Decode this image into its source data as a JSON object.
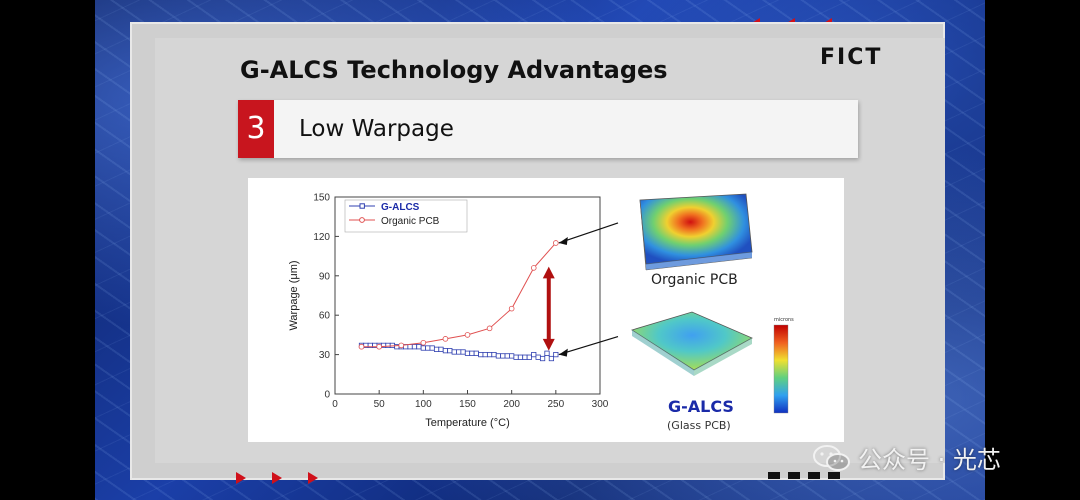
{
  "brand": {
    "logo_text": "FICT",
    "accent": "#d0101a"
  },
  "slide": {
    "title": "G-ALCS Technology Advantages",
    "section_number": "3",
    "section_title": "Low Warpage"
  },
  "figure": {
    "organic_caption": "Organic PCB",
    "galcs_caption": "G-ALCS",
    "glass_caption": "(Glass PCB)",
    "colorbar_label": "microns"
  },
  "watermark": {
    "text": "公众号 · 光芯",
    "icon": "wechat-icon"
  },
  "chart_data": {
    "type": "line",
    "title": "",
    "xlabel": "Temperature (°C)",
    "ylabel": "Warpage (μm)",
    "xlim": [
      0,
      300
    ],
    "ylim": [
      0,
      150
    ],
    "xticks": [
      0,
      50,
      100,
      150,
      200,
      250,
      300
    ],
    "yticks": [
      0,
      30,
      60,
      90,
      120,
      150
    ],
    "legend_position": "top-left",
    "series": [
      {
        "name": "G-ALCS",
        "color": "#3040b0",
        "marker": "square",
        "x": [
          30,
          35,
          40,
          45,
          50,
          55,
          60,
          65,
          70,
          75,
          80,
          85,
          90,
          95,
          100,
          105,
          110,
          115,
          120,
          125,
          130,
          135,
          140,
          145,
          150,
          155,
          160,
          165,
          170,
          175,
          180,
          185,
          190,
          195,
          200,
          205,
          210,
          215,
          220,
          225,
          230,
          235,
          240,
          245,
          250
        ],
        "y": [
          37,
          37,
          37,
          37,
          37,
          37,
          37,
          37,
          36,
          36,
          36,
          36,
          36,
          36,
          35,
          35,
          35,
          34,
          34,
          33,
          33,
          32,
          32,
          32,
          31,
          31,
          31,
          30,
          30,
          30,
          30,
          29,
          29,
          29,
          29,
          28,
          28,
          28,
          28,
          30,
          28,
          27,
          31,
          27,
          30
        ]
      },
      {
        "name": "Organic PCB",
        "color": "#e05050",
        "marker": "circle",
        "x": [
          30,
          50,
          75,
          100,
          125,
          150,
          175,
          200,
          225,
          250
        ],
        "y": [
          36,
          36,
          37,
          39,
          42,
          45,
          50,
          65,
          96,
          115
        ]
      }
    ]
  }
}
